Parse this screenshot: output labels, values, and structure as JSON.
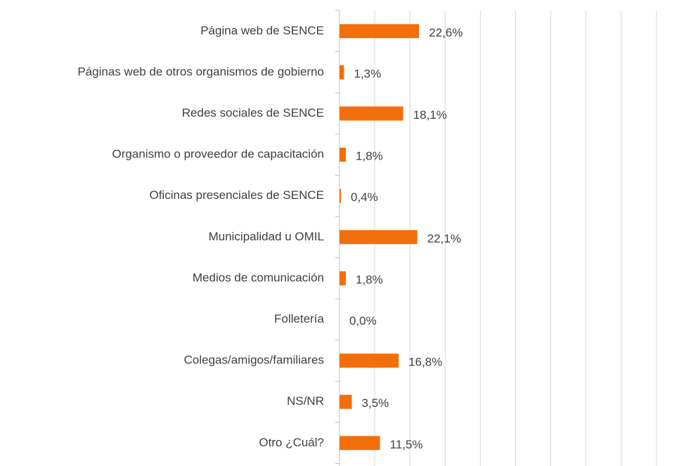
{
  "chart_data": {
    "type": "barh",
    "categories": [
      "Página web de SENCE",
      "Páginas web de otros organismos de gobierno",
      "Redes sociales de SENCE",
      "Organismo o proveedor de capacitación",
      "Oficinas presenciales de SENCE",
      "Municipalidad u OMIL",
      "Medios de comunicación",
      "Folletería",
      "Colegas/amigos/familiares",
      "NS/NR",
      "Otro ¿Cuál?"
    ],
    "values": [
      22.6,
      1.3,
      18.1,
      1.8,
      0.4,
      22.1,
      1.8,
      0.0,
      16.8,
      3.5,
      11.5
    ],
    "value_labels": [
      "22,6%",
      "1,3%",
      "18,1%",
      "1,8%",
      "0,4%",
      "22,1%",
      "1,8%",
      "0,0%",
      "16,8%",
      "3,5%",
      "11,5%"
    ],
    "color": "#f26f0c",
    "xlim": [
      0,
      90
    ],
    "xticks": [
      0,
      10,
      20,
      30,
      40,
      50,
      60,
      70,
      80,
      90
    ],
    "grid": true
  }
}
